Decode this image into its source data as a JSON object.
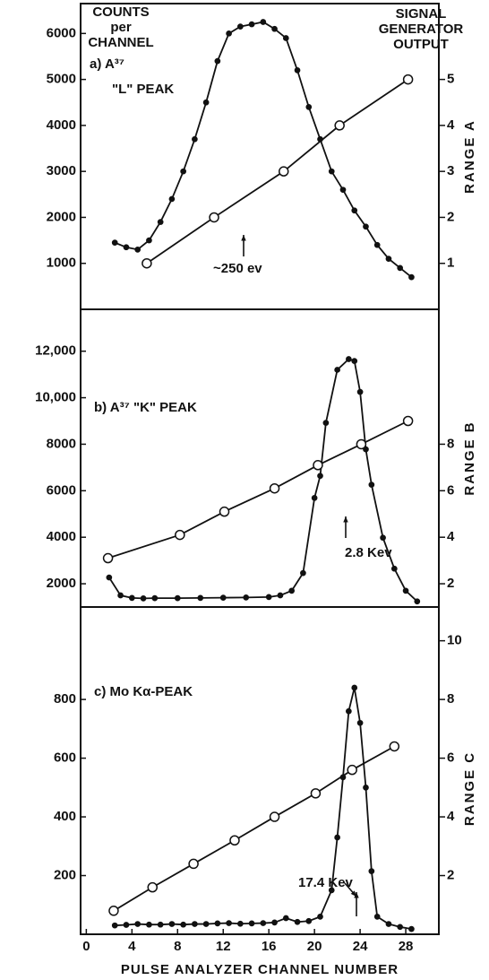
{
  "chart_data": [
    {
      "type": "line",
      "panel_label": [
        "a) A³⁷",
        "\"L\" PEAK"
      ],
      "y_label": [
        "COUNTS",
        "per",
        "CHANNEL"
      ],
      "y2_label": [
        "SIGNAL",
        "GENERATOR",
        "OUTPUT"
      ],
      "range_label": "RANGE A",
      "annotations": [
        "~250 ev"
      ],
      "xlim": [
        -0.5,
        30.9
      ],
      "ylim": [
        0,
        6650
      ],
      "yticks": [
        1000,
        2000,
        3000,
        4000,
        5000,
        6000
      ],
      "y2lim": [
        0,
        6.65
      ],
      "y2ticks": [
        1,
        2,
        3,
        4,
        5
      ],
      "series": [
        {
          "color": "#111111",
          "marker": "dot",
          "x": [
            2.5,
            3.5,
            4.5,
            5.5,
            6.5,
            7.5,
            8.5,
            9.5,
            10.5,
            11.5,
            12.5,
            13.5,
            14.5,
            15.5,
            16.5,
            17.5,
            18.5,
            19.5,
            20.5,
            21.5,
            22.5,
            23.5,
            24.5,
            25.5,
            26.5,
            27.5,
            28.5
          ],
          "values": [
            1450,
            1350,
            1300,
            1500,
            1900,
            2400,
            3000,
            3700,
            4500,
            5400,
            6000,
            6150,
            6200,
            6250,
            6100,
            5900,
            5200,
            4400,
            3700,
            3000,
            2600,
            2150,
            1800,
            1400,
            1100,
            900,
            700
          ]
        },
        {
          "color": "#111111",
          "marker": "circle",
          "axis": "y2",
          "x": [
            5.3,
            11.2,
            17.3,
            22.2,
            28.2
          ],
          "values": [
            1,
            2,
            3,
            4,
            5
          ]
        }
      ]
    },
    {
      "type": "line",
      "panel_label": [
        "b) A³⁷ \"K\" PEAK"
      ],
      "range_label": "RANGE B",
      "annotations": [
        "2.8 Kev"
      ],
      "xlim": [
        -0.5,
        30.9
      ],
      "ylim": [
        1000,
        13800
      ],
      "yticks": [
        2000,
        4000,
        6000,
        8000,
        {
          "value": 10000,
          "label": "10,000"
        },
        {
          "value": 12000,
          "label": "12,000"
        }
      ],
      "y2lim": [
        1,
        13.8
      ],
      "y2ticks": [
        2,
        4,
        6,
        8
      ],
      "series": [
        {
          "color": "#111111",
          "marker": "dot",
          "x": [
            2,
            3,
            4,
            5,
            6,
            8,
            10,
            12,
            14,
            16,
            17,
            18,
            19,
            20,
            20.5,
            21,
            22,
            23,
            23.5,
            24,
            24.5,
            25,
            26,
            27,
            28,
            29
          ],
          "values": [
            2270,
            1500,
            1390,
            1370,
            1380,
            1380,
            1390,
            1400,
            1410,
            1430,
            1500,
            1700,
            2460,
            5690,
            6640,
            8920,
            11200,
            11660,
            11580,
            10250,
            7780,
            6260,
            3980,
            2650,
            1700,
            1240
          ]
        },
        {
          "color": "#111111",
          "marker": "circle",
          "axis": "y2",
          "x": [
            1.9,
            8.2,
            12.1,
            16.5,
            20.3,
            24.1,
            28.2
          ],
          "values": [
            3.1,
            4.1,
            5.1,
            6.1,
            7.1,
            8.0,
            9.0
          ]
        }
      ]
    },
    {
      "type": "line",
      "panel_label": [
        "c) Mo  Kα-PEAK"
      ],
      "range_label": "RANGE C",
      "annotations": [
        "17.4 Kev"
      ],
      "x_label": "PULSE ANALYZER CHANNEL NUMBER",
      "xlim": [
        -0.5,
        30.9
      ],
      "xticks": [
        0,
        4,
        8,
        12,
        16,
        20,
        24,
        28
      ],
      "ylim": [
        0,
        1115
      ],
      "yticks": [
        200,
        400,
        600,
        800
      ],
      "y2lim": [
        0,
        11.15
      ],
      "y2ticks": [
        2,
        4,
        6,
        8,
        10
      ],
      "series": [
        {
          "color": "#111111",
          "marker": "dot",
          "x": [
            2.5,
            3.5,
            4.5,
            5.5,
            6.5,
            7.5,
            8.5,
            9.5,
            10.5,
            11.5,
            12.5,
            13.5,
            14.5,
            15.5,
            16.5,
            17.5,
            18.5,
            19.5,
            20.5,
            21.5,
            22,
            22.5,
            23,
            23.5,
            24,
            24.5,
            25,
            25.5,
            26.5,
            27.5,
            28.5
          ],
          "values": [
            30,
            32,
            35,
            33,
            33,
            35,
            33,
            35,
            35,
            37,
            38,
            36,
            37,
            38,
            40,
            55,
            42,
            45,
            60,
            150,
            330,
            535,
            760,
            840,
            720,
            500,
            215,
            60,
            35,
            25,
            18
          ]
        },
        {
          "color": "#111111",
          "marker": "circle",
          "axis": "y2",
          "x": [
            2.4,
            5.8,
            9.4,
            13.0,
            16.5,
            20.1,
            23.3,
            27.0
          ],
          "values": [
            0.8,
            1.6,
            2.4,
            3.2,
            4.0,
            4.8,
            5.6,
            6.4
          ]
        }
      ]
    }
  ]
}
